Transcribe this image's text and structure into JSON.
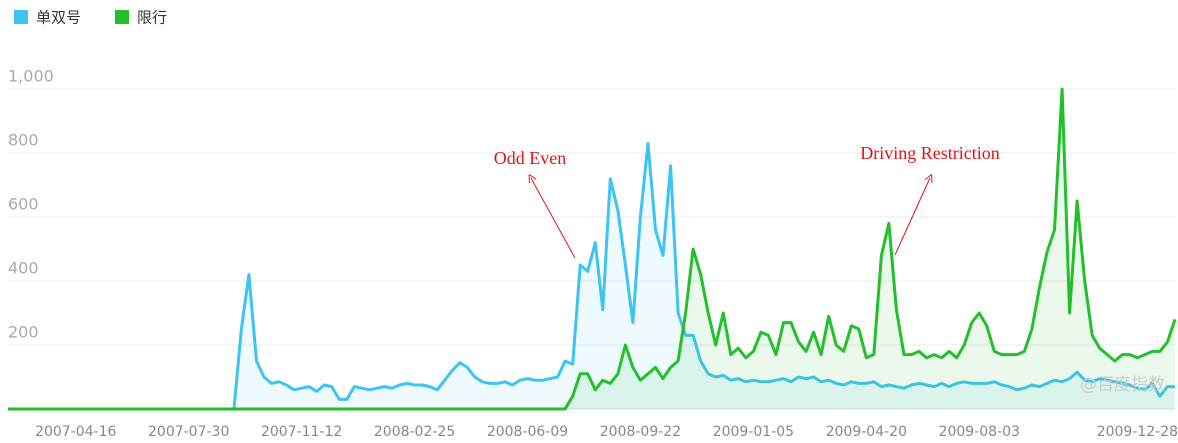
{
  "chart_data": {
    "type": "line",
    "annotations": [
      "Odd Even",
      "Driving Restriction"
    ],
    "watermark": "@百度指数",
    "categories": [
      null,
      null,
      null,
      null,
      null,
      null,
      null,
      null,
      null,
      "2007-04-16",
      null,
      null,
      null,
      null,
      null,
      null,
      null,
      null,
      null,
      null,
      null,
      null,
      null,
      null,
      "2007-07-30",
      null,
      null,
      null,
      null,
      null,
      null,
      null,
      null,
      null,
      null,
      null,
      null,
      null,
      null,
      "2007-11-12",
      null,
      null,
      null,
      null,
      null,
      null,
      null,
      null,
      null,
      null,
      null,
      null,
      null,
      null,
      "2008-02-25",
      null,
      null,
      null,
      null,
      null,
      null,
      null,
      null,
      null,
      null,
      null,
      null,
      null,
      null,
      "2008-06-09",
      null,
      null,
      null,
      null,
      null,
      null,
      null,
      null,
      null,
      null,
      null,
      null,
      null,
      null,
      "2008-09-22",
      null,
      null,
      null,
      null,
      null,
      null,
      null,
      null,
      null,
      null,
      null,
      null,
      null,
      null,
      "2009-01-05",
      null,
      null,
      null,
      null,
      null,
      null,
      null,
      null,
      null,
      null,
      null,
      null,
      null,
      null,
      "2009-04-20",
      null,
      null,
      null,
      null,
      null,
      null,
      null,
      null,
      null,
      null,
      null,
      null,
      null,
      null,
      "2009-08-03",
      null,
      null,
      null,
      null,
      null,
      null,
      null,
      null,
      null,
      null,
      null,
      null,
      null,
      null,
      null,
      null,
      null,
      null,
      null,
      null,
      "2009-12-28",
      null,
      null,
      null,
      null,
      null
    ],
    "series": [
      {
        "name": "单双号",
        "color": "#3ec4f2",
        "values": [
          0,
          0,
          0,
          0,
          0,
          0,
          0,
          0,
          0,
          0,
          0,
          0,
          0,
          0,
          0,
          0,
          0,
          0,
          0,
          0,
          0,
          0,
          0,
          0,
          0,
          0,
          0,
          0,
          0,
          0,
          0,
          250,
          420,
          150,
          100,
          80,
          85,
          75,
          60,
          65,
          70,
          55,
          75,
          70,
          30,
          30,
          70,
          65,
          60,
          65,
          70,
          65,
          75,
          80,
          75,
          75,
          70,
          60,
          90,
          120,
          145,
          130,
          100,
          85,
          80,
          80,
          85,
          75,
          90,
          95,
          90,
          90,
          95,
          100,
          150,
          140,
          450,
          430,
          520,
          310,
          720,
          620,
          450,
          270,
          600,
          830,
          560,
          480,
          760,
          300,
          230,
          230,
          150,
          110,
          100,
          105,
          90,
          95,
          85,
          90,
          85,
          85,
          90,
          95,
          85,
          100,
          95,
          100,
          85,
          90,
          80,
          75,
          85,
          80,
          80,
          85,
          70,
          75,
          70,
          65,
          75,
          80,
          75,
          70,
          80,
          70,
          80,
          85,
          80,
          80,
          80,
          85,
          75,
          70,
          60,
          65,
          75,
          70,
          80,
          90,
          85,
          95,
          115,
          90,
          85,
          95,
          90,
          85,
          80,
          75,
          65,
          60,
          80,
          40,
          70,
          70
        ]
      },
      {
        "name": "限行",
        "color": "#22c02a",
        "values": [
          0,
          0,
          0,
          0,
          0,
          0,
          0,
          0,
          0,
          0,
          0,
          0,
          0,
          0,
          0,
          0,
          0,
          0,
          0,
          0,
          0,
          0,
          0,
          0,
          0,
          0,
          0,
          0,
          0,
          0,
          0,
          0,
          0,
          0,
          0,
          0,
          0,
          0,
          0,
          0,
          0,
          0,
          0,
          0,
          0,
          0,
          0,
          0,
          0,
          0,
          0,
          0,
          0,
          0,
          0,
          0,
          0,
          0,
          0,
          0,
          0,
          0,
          0,
          0,
          0,
          0,
          0,
          0,
          0,
          0,
          0,
          0,
          0,
          0,
          0,
          40,
          110,
          110,
          60,
          90,
          80,
          110,
          200,
          130,
          90,
          110,
          130,
          95,
          130,
          150,
          300,
          500,
          420,
          300,
          200,
          300,
          170,
          190,
          160,
          180,
          240,
          230,
          170,
          270,
          270,
          210,
          180,
          240,
          170,
          290,
          200,
          180,
          260,
          250,
          160,
          170,
          480,
          580,
          310,
          170,
          170,
          180,
          160,
          170,
          160,
          180,
          160,
          200,
          270,
          300,
          260,
          180,
          170,
          170,
          170,
          180,
          250,
          380,
          490,
          560,
          1000,
          300,
          650,
          400,
          230,
          190,
          170,
          150,
          170,
          170,
          160,
          170,
          180,
          180,
          210,
          280
        ]
      }
    ],
    "ylim": [
      0,
      1100
    ],
    "yticks": [
      200,
      400,
      600,
      800,
      {
        "value": 1000,
        "label": "1,000"
      }
    ],
    "grid": true,
    "legend": "top-left"
  }
}
